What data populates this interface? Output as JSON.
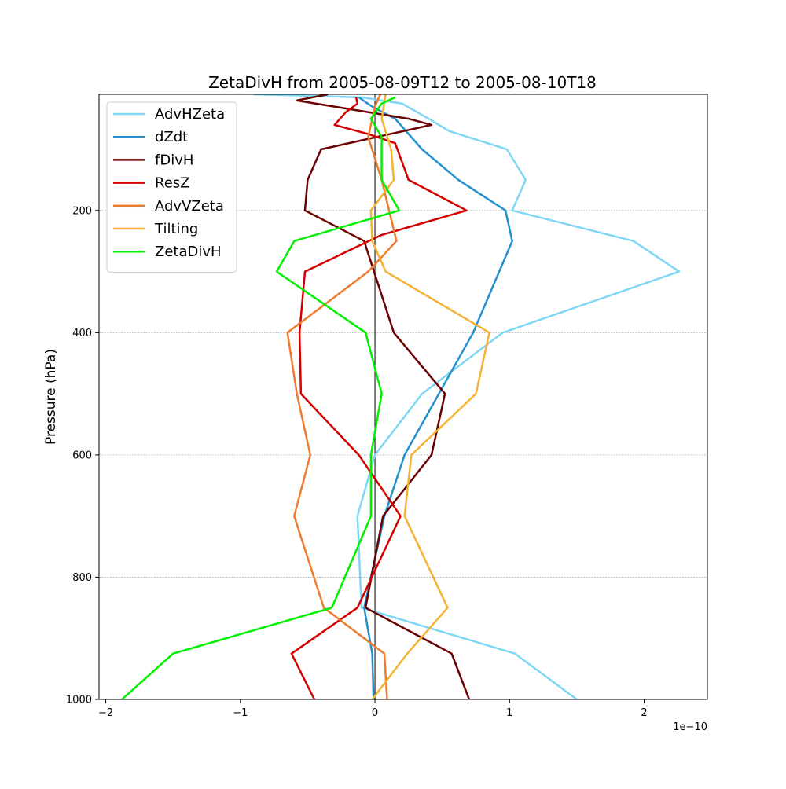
{
  "chart_data": {
    "type": "line",
    "title": "ZetaDivH from 2005-08-09T12 to 2005-08-10T18",
    "xlabel": "",
    "ylabel": "Pressure (hPa)",
    "x_offset_label": "1e−10",
    "xlim": [
      -2.05,
      2.47
    ],
    "ylim": [
      1000,
      10
    ],
    "y_inverted": true,
    "x_ticks": [
      -2,
      -1,
      0,
      1,
      2
    ],
    "x_tick_labels": [
      "−2",
      "−1",
      "0",
      "1",
      "2"
    ],
    "y_ticks": [
      200,
      400,
      600,
      800,
      1000
    ],
    "y_tick_labels": [
      "200",
      "400",
      "600",
      "800",
      "1000"
    ],
    "grid": "horizontal dashed at y ticks",
    "legend_position": "upper-left",
    "vertical_zero_line": true,
    "series": [
      {
        "name": "AdvHZeta",
        "color": "#7fd7f5",
        "points": [
          [
            -0.9,
            10
          ],
          [
            -0.1,
            15
          ],
          [
            0.2,
            25
          ],
          [
            0.4,
            50
          ],
          [
            0.55,
            70
          ],
          [
            0.98,
            100
          ],
          [
            1.12,
            150
          ],
          [
            1.02,
            200
          ],
          [
            1.92,
            250
          ],
          [
            2.26,
            300
          ],
          [
            0.95,
            400
          ],
          [
            0.35,
            500
          ],
          [
            0.0,
            600
          ],
          [
            -0.13,
            700
          ],
          [
            -0.1,
            850
          ],
          [
            1.04,
            925
          ],
          [
            1.5,
            1000
          ]
        ]
      },
      {
        "name": "dZdt",
        "color": "#2490d0",
        "points": [
          [
            -0.12,
            15
          ],
          [
            -0.02,
            30
          ],
          [
            0.15,
            50
          ],
          [
            0.35,
            100
          ],
          [
            0.62,
            150
          ],
          [
            0.97,
            200
          ],
          [
            1.02,
            250
          ],
          [
            0.73,
            400
          ],
          [
            0.22,
            600
          ],
          [
            0.07,
            700
          ],
          [
            -0.08,
            850
          ],
          [
            -0.02,
            925
          ],
          [
            -0.01,
            1000
          ]
        ]
      },
      {
        "name": "fDivH",
        "color": "#6b0000",
        "points": [
          [
            -0.35,
            10
          ],
          [
            -0.58,
            20
          ],
          [
            0.25,
            50
          ],
          [
            0.42,
            60
          ],
          [
            -0.4,
            100
          ],
          [
            -0.5,
            150
          ],
          [
            -0.52,
            200
          ],
          [
            -0.08,
            250
          ],
          [
            0.14,
            400
          ],
          [
            0.52,
            500
          ],
          [
            0.42,
            600
          ],
          [
            0.06,
            700
          ],
          [
            -0.07,
            850
          ],
          [
            0.57,
            925
          ],
          [
            0.7,
            1000
          ]
        ]
      },
      {
        "name": "ResZ",
        "color": "#d40000",
        "points": [
          [
            -0.14,
            15
          ],
          [
            -0.13,
            25
          ],
          [
            -0.22,
            40
          ],
          [
            -0.3,
            60
          ],
          [
            -0.05,
            75
          ],
          [
            0.15,
            90
          ],
          [
            0.25,
            150
          ],
          [
            0.68,
            200
          ],
          [
            0.05,
            240
          ],
          [
            -0.52,
            300
          ],
          [
            -0.56,
            400
          ],
          [
            -0.55,
            500
          ],
          [
            -0.12,
            600
          ],
          [
            0.19,
            700
          ],
          [
            -0.13,
            850
          ],
          [
            -0.62,
            925
          ],
          [
            -0.45,
            1000
          ]
        ]
      },
      {
        "name": "AdvVZeta",
        "color": "#ef7b2e",
        "points": [
          [
            0.04,
            10
          ],
          [
            0.0,
            30
          ],
          [
            -0.05,
            80
          ],
          [
            0.05,
            150
          ],
          [
            0.16,
            250
          ],
          [
            -0.05,
            300
          ],
          [
            -0.65,
            400
          ],
          [
            -0.58,
            500
          ],
          [
            -0.48,
            600
          ],
          [
            -0.6,
            700
          ],
          [
            -0.38,
            850
          ],
          [
            0.07,
            925
          ],
          [
            0.09,
            1000
          ]
        ]
      },
      {
        "name": "Tilting",
        "color": "#f5b233",
        "points": [
          [
            0.08,
            10
          ],
          [
            0.05,
            50
          ],
          [
            0.12,
            100
          ],
          [
            0.14,
            150
          ],
          [
            -0.03,
            200
          ],
          [
            -0.02,
            250
          ],
          [
            0.08,
            300
          ],
          [
            0.85,
            400
          ],
          [
            0.75,
            500
          ],
          [
            0.27,
            600
          ],
          [
            0.22,
            700
          ],
          [
            0.54,
            850
          ],
          [
            0.24,
            925
          ],
          [
            -0.02,
            1000
          ]
        ]
      },
      {
        "name": "ZetaDivH",
        "color": "#00f000",
        "points": [
          [
            0.15,
            15
          ],
          [
            0.05,
            25
          ],
          [
            -0.03,
            50
          ],
          [
            0.05,
            80
          ],
          [
            0.05,
            100
          ],
          [
            0.05,
            150
          ],
          [
            0.18,
            200
          ],
          [
            -0.6,
            250
          ],
          [
            -0.73,
            300
          ],
          [
            -0.07,
            400
          ],
          [
            0.05,
            500
          ],
          [
            -0.03,
            600
          ],
          [
            -0.03,
            700
          ],
          [
            -0.32,
            850
          ],
          [
            -1.5,
            925
          ],
          [
            -1.88,
            1000
          ]
        ]
      }
    ]
  }
}
